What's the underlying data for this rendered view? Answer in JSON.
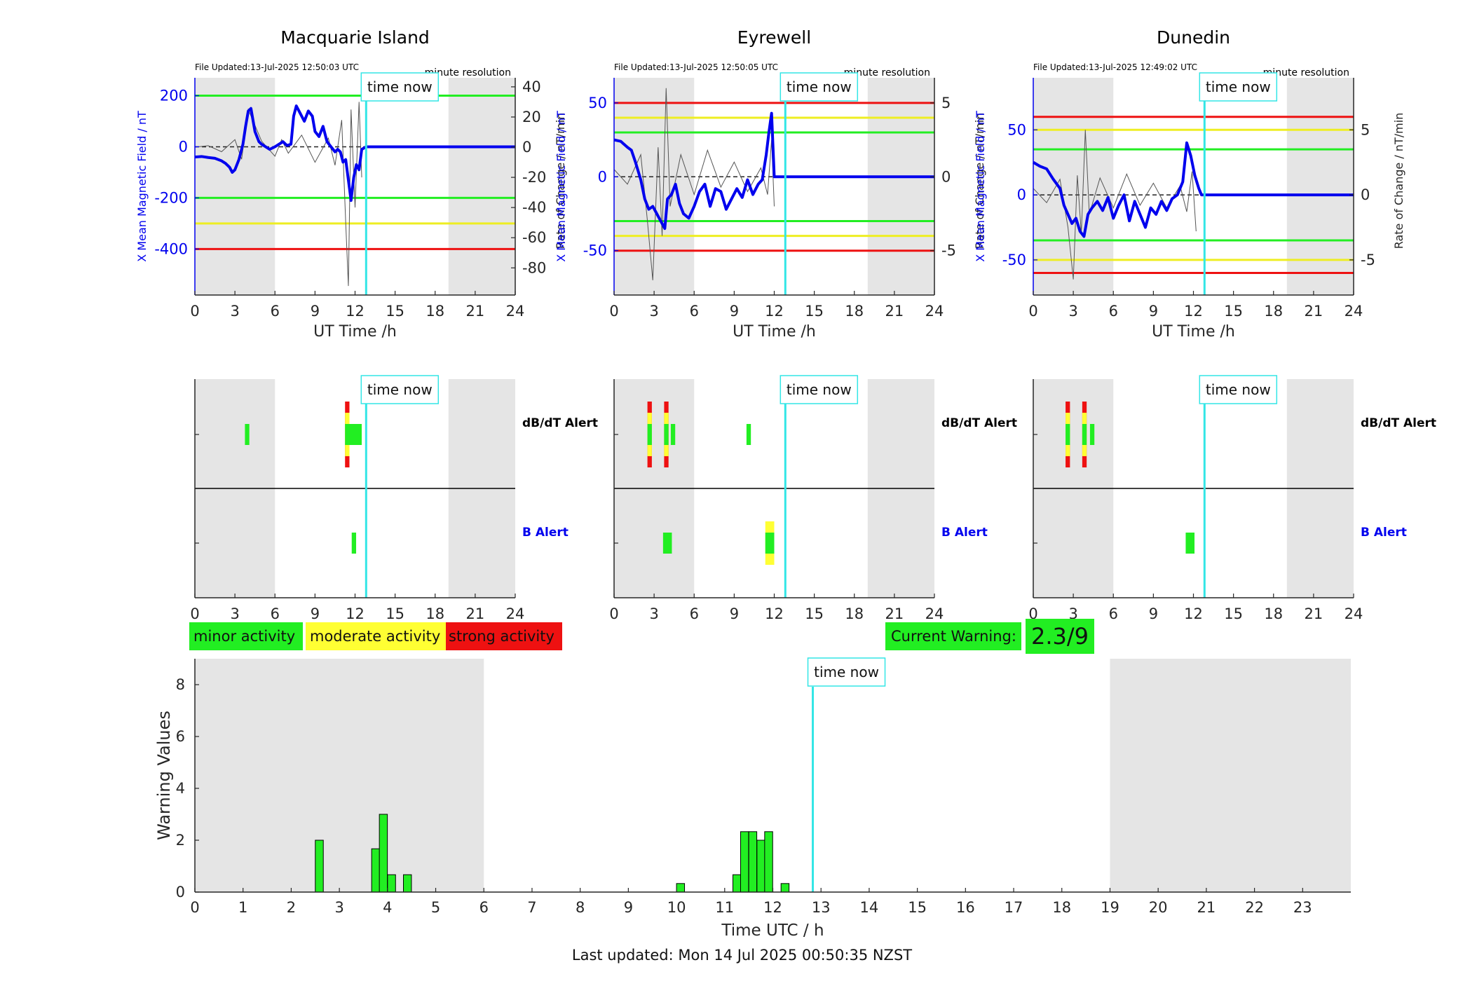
{
  "colors": {
    "night_shade": "#e5e5e5",
    "field_line": "#0000ee",
    "rate_line": "#555555",
    "now_line": "#33e6e6",
    "minor": "#22ee22",
    "moderate": "#ffff33",
    "strong": "#ee1111",
    "green_threshold": "#22ee22",
    "yellow_threshold": "#eeee22",
    "red_threshold": "#ee1111"
  },
  "legend": {
    "minor": "minor activity",
    "moderate": "moderate activity",
    "strong": "strong activity"
  },
  "current_warning": {
    "label": "Current Warning:",
    "value": "2.3/9"
  },
  "footer": {
    "last_updated": "Last updated: Mon 14 Jul 2025 00:50:35 NZST"
  },
  "chart_data": [
    {
      "type": "line",
      "title": "Macquarie Island",
      "file_updated": "File Updated:13-Jul-2025 12:50:03 UTC",
      "resolution": "minute resolution",
      "now_label": "time now",
      "xlabel": "UT Time /h",
      "ylabel_left": "X Mean Magnetic Field / nT",
      "ylabel_right": "Rate of Change / nT/min",
      "xlim": [
        0,
        24
      ],
      "xticks": [
        "0",
        "3",
        "6",
        "9",
        "12",
        "15",
        "18",
        "21",
        "24"
      ],
      "ylim_left": [
        -580,
        270
      ],
      "yticks_left": [
        "200",
        "0",
        "-200",
        "-400"
      ],
      "ylim_right": [
        -98,
        46
      ],
      "yticks_right": [
        "40",
        "20",
        "0",
        "-20",
        "-40",
        "-60",
        "-80"
      ],
      "night_shading": [
        [
          0,
          6
        ],
        [
          19,
          24
        ]
      ],
      "time_now": 12.83,
      "thresholds": [
        {
          "level": "green",
          "values": [
            200,
            -200
          ]
        },
        {
          "level": "yellow",
          "values": [
            -300
          ]
        },
        {
          "level": "red",
          "values": [
            -400
          ]
        }
      ],
      "series": [
        {
          "axis": "left",
          "x": [
            0,
            0.5,
            1,
            1.5,
            2,
            2.3,
            2.6,
            2.8,
            3.0,
            3.3,
            3.6,
            3.8,
            4.0,
            4.2,
            4.5,
            4.8,
            5.0,
            5.3,
            5.6,
            6.0,
            6.3,
            6.6,
            6.9,
            7.2,
            7.4,
            7.6,
            7.9,
            8.2,
            8.5,
            8.8,
            9.0,
            9.3,
            9.6,
            9.9,
            10.2,
            10.5,
            10.7,
            10.9,
            11.1,
            11.3,
            11.5,
            11.7,
            11.9,
            12.1,
            12.3,
            12.5,
            12.83,
            24
          ],
          "y": [
            -40,
            -38,
            -42,
            -45,
            -55,
            -65,
            -80,
            -100,
            -90,
            -50,
            10,
            80,
            140,
            150,
            60,
            20,
            10,
            0,
            -10,
            0,
            10,
            20,
            5,
            10,
            120,
            160,
            130,
            100,
            140,
            120,
            60,
            40,
            80,
            20,
            0,
            -20,
            -10,
            -20,
            -60,
            -50,
            -130,
            -210,
            -120,
            -70,
            -90,
            -10,
            0,
            0
          ]
        },
        {
          "axis": "right",
          "x": [
            0,
            1,
            2,
            3,
            3.5,
            4,
            5,
            6,
            6.5,
            7,
            8,
            9,
            10,
            10.5,
            11,
            11.3,
            11.5,
            11.7,
            12,
            12.3,
            12.5
          ],
          "y": [
            0,
            1,
            -3,
            5,
            -8,
            25,
            4,
            -6,
            5,
            -4,
            8,
            -10,
            6,
            -12,
            18,
            -50,
            -92,
            25,
            -40,
            30,
            -20
          ]
        }
      ]
    },
    {
      "type": "line",
      "title": "Eyrewell",
      "file_updated": "File Updated:13-Jul-2025 12:50:05 UTC",
      "resolution": "minute resolution",
      "now_label": "time now",
      "xlabel": "UT Time /h",
      "ylabel_left": "X Mean Magnetic Field / nT",
      "ylabel_right": "Rate of Change / nT/min",
      "xlim": [
        0,
        24
      ],
      "xticks": [
        "0",
        "3",
        "6",
        "9",
        "12",
        "15",
        "18",
        "21",
        "24"
      ],
      "ylim_left": [
        -80,
        67
      ],
      "yticks_left": [
        "50",
        "0",
        "-50"
      ],
      "ylim_right": [
        -8,
        6.7
      ],
      "yticks_right": [
        "5",
        "0",
        "-5"
      ],
      "night_shading": [
        [
          0,
          6
        ],
        [
          19,
          24
        ]
      ],
      "time_now": 12.83,
      "thresholds": [
        {
          "level": "red",
          "values": [
            50,
            -50
          ]
        },
        {
          "level": "yellow",
          "values": [
            40,
            -40
          ]
        },
        {
          "level": "green",
          "values": [
            30,
            -30
          ]
        }
      ],
      "series": [
        {
          "axis": "left",
          "x": [
            0,
            0.5,
            1,
            1.3,
            1.6,
            2.0,
            2.3,
            2.6,
            2.9,
            3.2,
            3.5,
            3.8,
            4.0,
            4.3,
            4.6,
            4.9,
            5.2,
            5.6,
            6.0,
            6.4,
            6.8,
            7.2,
            7.6,
            8.0,
            8.4,
            8.8,
            9.2,
            9.6,
            10.0,
            10.4,
            10.8,
            11.1,
            11.4,
            11.6,
            11.8,
            12.0,
            12.83,
            24
          ],
          "y": [
            25,
            24,
            20,
            18,
            10,
            -2,
            -15,
            -22,
            -20,
            -25,
            -30,
            -35,
            -15,
            -12,
            -5,
            -18,
            -25,
            -28,
            -20,
            -10,
            -5,
            -20,
            -8,
            -10,
            -22,
            -15,
            -8,
            -14,
            -2,
            -12,
            -5,
            -2,
            15,
            30,
            43,
            0,
            0,
            0
          ]
        },
        {
          "axis": "right",
          "x": [
            0,
            1,
            2,
            2.5,
            2.9,
            3.3,
            3.6,
            3.9,
            4.2,
            5,
            6,
            7,
            8,
            9,
            10,
            11,
            11.5,
            11.8,
            12
          ],
          "y": [
            0.5,
            -0.5,
            1.5,
            -3,
            -7,
            2,
            -4,
            6,
            -2,
            1.5,
            -1.2,
            1.8,
            -0.7,
            1,
            -1,
            0.6,
            -1.2,
            2.5,
            -2
          ]
        }
      ]
    },
    {
      "type": "line",
      "title": "Dunedin",
      "file_updated": "File Updated:13-Jul-2025 12:49:02 UTC",
      "resolution": "minute resolution",
      "now_label": "time now",
      "xlabel": "UT Time /h",
      "ylabel_left": "X Mean Magnetic Field / nT",
      "ylabel_right": "Rate of Change / nT/min",
      "xlim": [
        0,
        24
      ],
      "xticks": [
        "0",
        "3",
        "6",
        "9",
        "12",
        "15",
        "18",
        "21",
        "24"
      ],
      "ylim_left": [
        -77,
        90
      ],
      "yticks_left": [
        "50",
        "0",
        "-50"
      ],
      "ylim_right": [
        -7.7,
        9
      ],
      "yticks_right": [
        "5",
        "0",
        "-5"
      ],
      "night_shading": [
        [
          0,
          6
        ],
        [
          19,
          24
        ]
      ],
      "time_now": 12.83,
      "thresholds": [
        {
          "level": "red",
          "values": [
            60,
            -60
          ]
        },
        {
          "level": "yellow",
          "values": [
            50,
            -50
          ]
        },
        {
          "level": "green",
          "values": [
            35,
            -35
          ]
        }
      ],
      "series": [
        {
          "axis": "left",
          "x": [
            0,
            0.5,
            1,
            1.5,
            2.0,
            2.3,
            2.6,
            2.9,
            3.2,
            3.5,
            3.8,
            4.1,
            4.4,
            4.8,
            5.2,
            5.6,
            6.0,
            6.4,
            6.8,
            7.2,
            7.6,
            8.0,
            8.4,
            8.8,
            9.2,
            9.6,
            10.0,
            10.4,
            10.8,
            11.2,
            11.5,
            11.8,
            12.1,
            12.4,
            12.6,
            12.83,
            24
          ],
          "y": [
            25,
            22,
            20,
            12,
            5,
            -8,
            -15,
            -22,
            -18,
            -28,
            -32,
            -15,
            -10,
            -5,
            -12,
            -2,
            -18,
            -8,
            0,
            -20,
            -5,
            -15,
            -25,
            -10,
            -15,
            -5,
            -12,
            -3,
            0,
            10,
            40,
            30,
            15,
            5,
            0,
            0,
            0
          ]
        },
        {
          "axis": "right",
          "x": [
            0,
            1,
            2,
            2.6,
            3.0,
            3.3,
            3.6,
            3.9,
            4.2,
            5,
            6,
            7,
            8,
            9,
            10,
            11,
            11.5,
            11.9,
            12.2
          ],
          "y": [
            0.5,
            -0.6,
            1.2,
            -2.5,
            -6.5,
            1.5,
            -3,
            5,
            -1.5,
            1.3,
            -1,
            1.6,
            -0.8,
            0.9,
            -1,
            0.7,
            -1.3,
            1.8,
            -2.8
          ]
        }
      ]
    },
    {
      "type": "bar",
      "chart_role": "alert-timeline",
      "station": "Macquarie Island",
      "rows": [
        "dB/dT Alert",
        "B Alert"
      ],
      "now_label": "time now",
      "xlim": [
        0,
        24
      ],
      "xticks": [
        "0",
        "3",
        "6",
        "9",
        "12",
        "15",
        "18",
        "21",
        "24"
      ],
      "night_shading": [
        [
          0,
          6
        ],
        [
          19,
          24
        ]
      ],
      "time_now": 12.83,
      "alerts": [
        {
          "row": "dB/dT Alert",
          "start": 3.75,
          "end": 4.08,
          "level": "minor"
        },
        {
          "row": "dB/dT Alert",
          "start": 11.25,
          "end": 11.58,
          "level": "strong"
        },
        {
          "row": "dB/dT Alert",
          "start": 11.58,
          "end": 12.5,
          "level": "minor"
        },
        {
          "row": "B Alert",
          "start": 11.75,
          "end": 12.08,
          "level": "minor"
        }
      ]
    },
    {
      "type": "bar",
      "chart_role": "alert-timeline",
      "station": "Eyrewell",
      "rows": [
        "dB/dT Alert",
        "B Alert"
      ],
      "now_label": "time now",
      "xlim": [
        0,
        24
      ],
      "xticks": [
        "0",
        "3",
        "6",
        "9",
        "12",
        "15",
        "18",
        "21",
        "24"
      ],
      "night_shading": [
        [
          0,
          6
        ],
        [
          19,
          24
        ]
      ],
      "time_now": 12.83,
      "alerts": [
        {
          "row": "dB/dT Alert",
          "start": 2.5,
          "end": 2.83,
          "level": "strong"
        },
        {
          "row": "dB/dT Alert",
          "start": 3.75,
          "end": 4.08,
          "level": "strong"
        },
        {
          "row": "dB/dT Alert",
          "start": 4.25,
          "end": 4.58,
          "level": "minor"
        },
        {
          "row": "dB/dT Alert",
          "start": 9.92,
          "end": 10.25,
          "level": "minor"
        },
        {
          "row": "B Alert",
          "start": 3.67,
          "end": 4.33,
          "level": "minor"
        },
        {
          "row": "B Alert",
          "start": 11.33,
          "end": 12.0,
          "level": "moderate"
        }
      ]
    },
    {
      "type": "bar",
      "chart_role": "alert-timeline",
      "station": "Dunedin",
      "rows": [
        "dB/dT Alert",
        "B Alert"
      ],
      "now_label": "time now",
      "xlim": [
        0,
        24
      ],
      "xticks": [
        "0",
        "3",
        "6",
        "9",
        "12",
        "15",
        "18",
        "21",
        "24"
      ],
      "night_shading": [
        [
          0,
          6
        ],
        [
          19,
          24
        ]
      ],
      "time_now": 12.83,
      "alerts": [
        {
          "row": "dB/dT Alert",
          "start": 2.42,
          "end": 2.75,
          "level": "strong"
        },
        {
          "row": "dB/dT Alert",
          "start": 3.67,
          "end": 4.0,
          "level": "strong"
        },
        {
          "row": "dB/dT Alert",
          "start": 4.25,
          "end": 4.58,
          "level": "minor"
        },
        {
          "row": "B Alert",
          "start": 11.42,
          "end": 12.08,
          "level": "minor"
        }
      ]
    },
    {
      "type": "bar",
      "chart_role": "warning-values",
      "now_label": "time now",
      "xlabel": "Time UTC / h",
      "ylabel": "Warning Values",
      "xlim": [
        0,
        24
      ],
      "xticks": [
        "0",
        "1",
        "2",
        "3",
        "4",
        "5",
        "6",
        "7",
        "8",
        "9",
        "10",
        "11",
        "12",
        "13",
        "14",
        "15",
        "16",
        "17",
        "18",
        "19",
        "20",
        "21",
        "22",
        "23"
      ],
      "ylim": [
        0,
        9
      ],
      "yticks": [
        "0",
        "2",
        "4",
        "6",
        "8"
      ],
      "night_shading": [
        [
          0,
          6
        ],
        [
          19,
          24
        ]
      ],
      "time_now": 12.83,
      "bar_width_h": 0.1667,
      "x": [
        2.5,
        3.67,
        3.83,
        4.0,
        4.33,
        10.0,
        11.17,
        11.33,
        11.5,
        11.67,
        11.83,
        12.17
      ],
      "values": [
        2.0,
        1.67,
        3.0,
        0.67,
        0.67,
        0.33,
        0.67,
        2.33,
        2.33,
        2.0,
        2.33,
        0.33
      ]
    }
  ]
}
